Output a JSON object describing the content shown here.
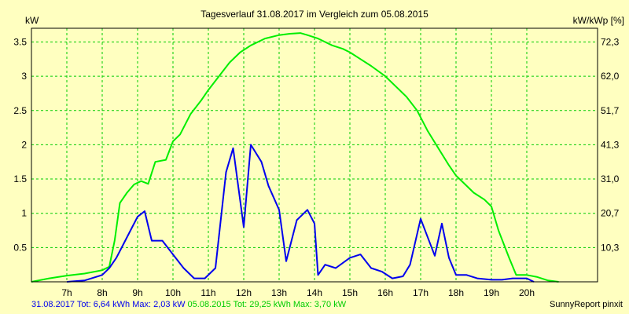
{
  "chart_data": {
    "type": "line",
    "title": "Tagesverlauf 31.08.2017 im Vergleich zum 05.08.2015",
    "ylabel_left": "kW",
    "ylabel_right": "kW/kWp [%]",
    "x_ticks": [
      "7h",
      "8h",
      "9h",
      "10h",
      "11h",
      "12h",
      "13h",
      "14h",
      "15h",
      "16h",
      "17h",
      "18h",
      "19h",
      "20h"
    ],
    "x_range": [
      6.0,
      22.0
    ],
    "ylim": [
      0,
      3.7
    ],
    "y_ticks_left": [
      "0.5",
      "1",
      "1.5",
      "2",
      "2.5",
      "3",
      "3.5"
    ],
    "y_ticks_right": [
      "10,3",
      "20,7",
      "31,0",
      "41,3",
      "51,7",
      "62,0",
      "72,3"
    ],
    "grid": true,
    "series": [
      {
        "name": "05.08.2015",
        "color": "#00ee00",
        "x": [
          6.0,
          6.5,
          7.0,
          7.5,
          8.0,
          8.2,
          8.35,
          8.5,
          8.7,
          8.9,
          9.1,
          9.3,
          9.5,
          9.8,
          10.0,
          10.2,
          10.5,
          10.8,
          11.0,
          11.3,
          11.6,
          11.9,
          12.2,
          12.6,
          13.0,
          13.3,
          13.6,
          13.8,
          14.1,
          14.5,
          14.8,
          15.0,
          15.3,
          15.6,
          16.0,
          16.3,
          16.6,
          16.9,
          17.2,
          17.5,
          17.8,
          18.0,
          18.2,
          18.5,
          18.8,
          19.0,
          19.2,
          19.5,
          19.7,
          20.0,
          20.3,
          20.6,
          20.9
        ],
        "y": [
          0.0,
          0.05,
          0.09,
          0.12,
          0.17,
          0.22,
          0.6,
          1.15,
          1.3,
          1.42,
          1.47,
          1.43,
          1.75,
          1.78,
          2.05,
          2.15,
          2.45,
          2.65,
          2.8,
          3.0,
          3.2,
          3.35,
          3.45,
          3.55,
          3.6,
          3.62,
          3.63,
          3.6,
          3.55,
          3.45,
          3.4,
          3.35,
          3.25,
          3.15,
          3.0,
          2.85,
          2.7,
          2.5,
          2.2,
          1.95,
          1.7,
          1.55,
          1.45,
          1.3,
          1.2,
          1.1,
          0.75,
          0.35,
          0.1,
          0.1,
          0.07,
          0.02,
          0.0
        ]
      },
      {
        "name": "31.08.2017",
        "color": "#0000ee",
        "x": [
          7.0,
          7.5,
          8.0,
          8.2,
          8.4,
          8.6,
          8.8,
          9.0,
          9.2,
          9.4,
          9.7,
          10.0,
          10.3,
          10.6,
          10.9,
          11.2,
          11.5,
          11.7,
          12.0,
          12.2,
          12.5,
          12.7,
          13.0,
          13.2,
          13.5,
          13.8,
          14.0,
          14.1,
          14.3,
          14.6,
          15.0,
          15.3,
          15.6,
          15.9,
          16.2,
          16.5,
          16.7,
          17.0,
          17.2,
          17.4,
          17.6,
          17.8,
          18.0,
          18.3,
          18.6,
          19.0,
          19.3,
          19.6,
          19.8,
          20.0,
          20.2
        ],
        "y": [
          0.0,
          0.02,
          0.1,
          0.2,
          0.35,
          0.55,
          0.75,
          0.95,
          1.03,
          0.6,
          0.6,
          0.4,
          0.2,
          0.05,
          0.05,
          0.2,
          1.6,
          1.95,
          0.8,
          2.0,
          1.75,
          1.4,
          1.05,
          0.3,
          0.9,
          1.05,
          0.85,
          0.1,
          0.25,
          0.2,
          0.35,
          0.4,
          0.2,
          0.15,
          0.05,
          0.08,
          0.25,
          0.92,
          0.65,
          0.38,
          0.85,
          0.35,
          0.1,
          0.1,
          0.05,
          0.03,
          0.03,
          0.05,
          0.05,
          0.05,
          0.0
        ]
      }
    ]
  },
  "footer": {
    "left_blue": "31.08.2017 Tot: 6,64 kWh Max: 2,03 kW",
    "left_green": "05.08.2015 Tot: 29,25 kWh Max: 3,70 kW",
    "right": "SunnyReport pinxit",
    "blue_color": "#0000ee",
    "green_color": "#00cc00"
  }
}
